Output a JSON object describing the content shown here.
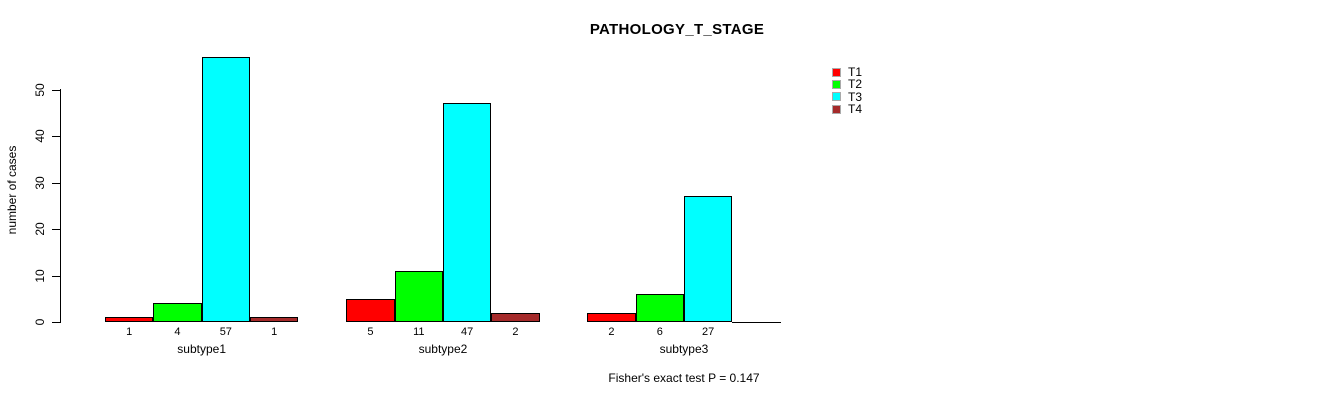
{
  "chart_data": {
    "type": "bar",
    "title": "PATHOLOGY_T_STAGE",
    "ylabel": "number of cases",
    "ylim": [
      0,
      57
    ],
    "yticks": [
      0,
      10,
      20,
      30,
      40,
      50
    ],
    "grid": false,
    "legend_position": "top-right",
    "background": "#FFFFFF",
    "axis_color": "#000000",
    "categories": [
      "subtype1",
      "subtype2",
      "subtype3"
    ],
    "series": [
      {
        "name": "T1",
        "color": "#FF0000",
        "values": [
          1,
          5,
          2
        ]
      },
      {
        "name": "T2",
        "color": "#00FF00",
        "values": [
          4,
          11,
          6
        ]
      },
      {
        "name": "T3",
        "color": "#00FFFF",
        "values": [
          57,
          47,
          27
        ]
      },
      {
        "name": "T4",
        "color": "#A52A2A",
        "values": [
          1,
          2,
          0
        ]
      }
    ],
    "value_labels": [
      [
        "1",
        "4",
        "57",
        "1"
      ],
      [
        "5",
        "11",
        "47",
        "2"
      ],
      [
        "2",
        "6",
        "27",
        ""
      ]
    ],
    "note": "Fisher's exact test P = 0.147"
  }
}
